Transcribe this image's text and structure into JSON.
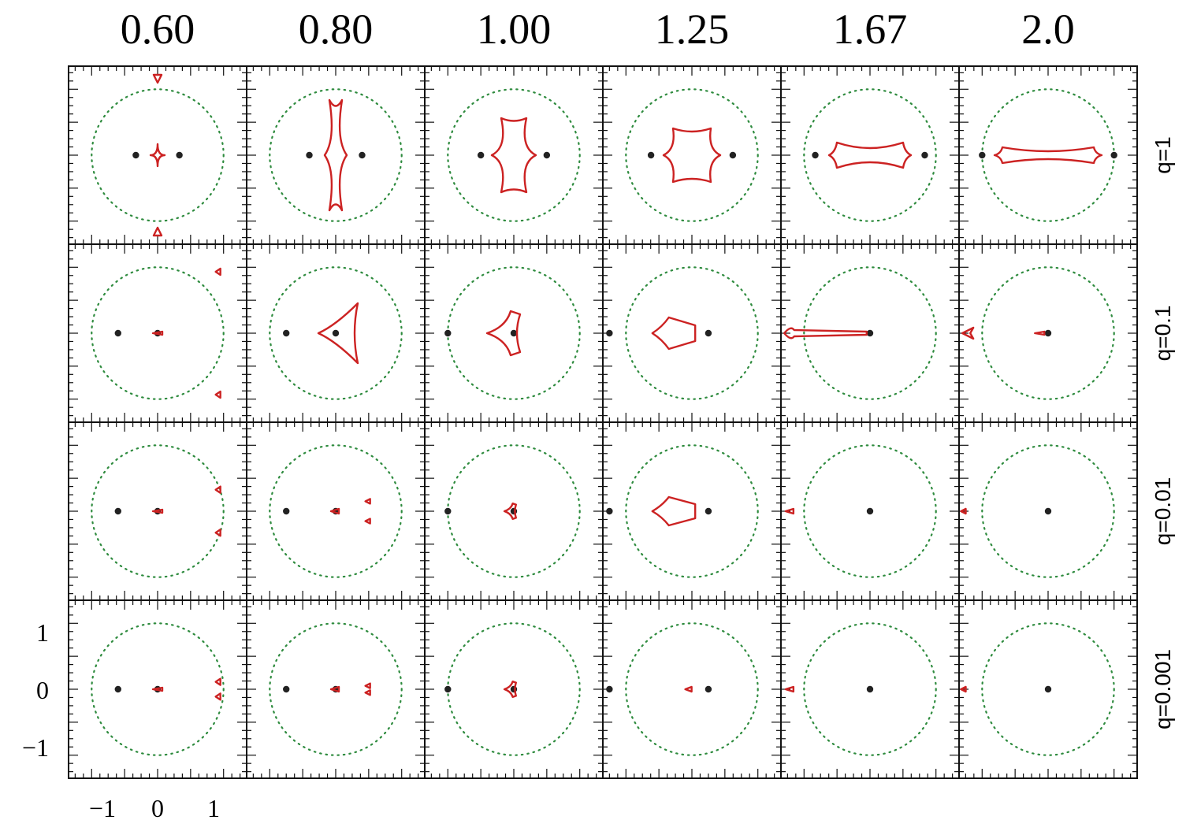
{
  "chart_data": {
    "type": "scatter",
    "description_free": true,
    "columns": [
      "0.60",
      "0.80",
      "1.00",
      "1.25",
      "1.67",
      "2.0"
    ],
    "rows": [
      "q=1",
      "q=0.1",
      "q=0.01",
      "q=0.001"
    ],
    "x_ticks": [
      "−1",
      "0",
      "1"
    ],
    "y_ticks": [
      "1",
      "0",
      "−1"
    ],
    "xlim": [
      -1.35,
      1.35
    ],
    "ylim": [
      -1.35,
      1.35
    ],
    "circle_radius": 1.0,
    "colors": {
      "caustic": "#cc2222",
      "lens": "#222222",
      "circle": "#2e8b3e",
      "frame": "#111111"
    },
    "lens_positions": [
      [
        [
          -0.33,
          0.0
        ],
        [
          0.33,
          0.0
        ]
      ],
      [
        [
          -0.4,
          0.0
        ],
        [
          0.4,
          0.0
        ]
      ],
      [
        [
          -0.5,
          0.0
        ],
        [
          0.5,
          0.0
        ]
      ],
      [
        [
          -0.62,
          0.0
        ],
        [
          0.62,
          0.0
        ]
      ],
      [
        [
          -0.83,
          0.0
        ],
        [
          0.83,
          0.0
        ]
      ],
      [
        [
          -1.0,
          0.0
        ],
        [
          1.0,
          0.0
        ]
      ]
    ],
    "row_lens_positions": [
      null,
      [
        [
          -0.6,
          0.0
        ],
        [
          0.0,
          0.0
        ]
      ],
      [
        [
          -0.6,
          0.0
        ],
        [
          0.0,
          0.0
        ]
      ],
      [
        [
          -0.6,
          0.0
        ],
        [
          0.0,
          0.0
        ]
      ]
    ]
  }
}
